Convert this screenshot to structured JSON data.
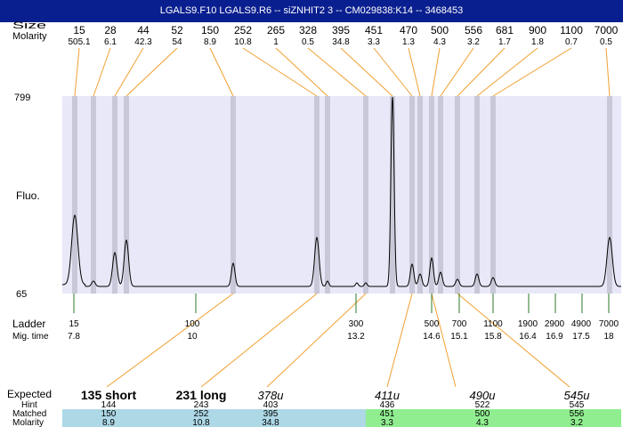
{
  "title": "LGALS9.F10  LGALS9.R6 -- siZNHIT2 3 -- CM029838:K14 -- 3468453",
  "colors": {
    "title_bg": "#0a1f8f",
    "plot_bg": "#e8e8f8",
    "peak_band": "#c8c8d8",
    "connector": "#f0a030",
    "ladder_tick": "#2a7a2a",
    "matched_blue": "#add8e6",
    "matched_green": "#90ee90"
  },
  "chart_data": {
    "type": "line",
    "row_labels": {
      "size": "Size",
      "molarity": "Molarity",
      "fluo": "Fluo.",
      "ladder": "Ladder",
      "mig_time": "Mig. time",
      "expected": "Expected",
      "hint": "Hint",
      "matched": "Matched",
      "matched_molarity": "Molarity"
    },
    "y_max": "799",
    "y_min": "65",
    "peaks": [
      {
        "size": "15",
        "molarity": "505.1"
      },
      {
        "size": "28",
        "molarity": "6.1"
      },
      {
        "size": "44",
        "molarity": "42.3"
      },
      {
        "size": "52",
        "molarity": "54"
      },
      {
        "size": "150",
        "molarity": "8.9"
      },
      {
        "size": "252",
        "molarity": "10.8"
      },
      {
        "size": "265",
        "molarity": "1"
      },
      {
        "size": "328",
        "molarity": "0.5"
      },
      {
        "size": "395",
        "molarity": "34.8"
      },
      {
        "size": "451",
        "molarity": "3.3"
      },
      {
        "size": "470",
        "molarity": "1.3"
      },
      {
        "size": "500",
        "molarity": "4.3"
      },
      {
        "size": "556",
        "molarity": "3.2"
      },
      {
        "size": "681",
        "molarity": "1.7"
      },
      {
        "size": "900",
        "molarity": "1.8"
      },
      {
        "size": "1100",
        "molarity": "0.7"
      },
      {
        "size": "7000",
        "molarity": "0.5"
      }
    ],
    "ladder": [
      {
        "size": "15",
        "time": "7.8"
      },
      {
        "size": "100",
        "time": "10"
      },
      {
        "size": "300",
        "time": "13.2"
      },
      {
        "size": "500",
        "time": "14.6"
      },
      {
        "size": "700",
        "time": "15.1"
      },
      {
        "size": "1100",
        "time": "15.8"
      },
      {
        "size": "1900",
        "time": "16.4"
      },
      {
        "size": "2900",
        "time": "16.9"
      },
      {
        "size": "4900",
        "time": "17.5"
      },
      {
        "size": "7000",
        "time": "18"
      }
    ],
    "expected": [
      {
        "label": "135 short",
        "hint": "144",
        "matched": "150",
        "molarity": "8.9",
        "style": "bold",
        "group": "blue"
      },
      {
        "label": "231 long",
        "hint": "243",
        "matched": "252",
        "molarity": "10.8",
        "style": "bold",
        "group": "blue"
      },
      {
        "label": "378u",
        "hint": "403",
        "matched": "395",
        "molarity": "34.8",
        "style": "italic",
        "group": "blue"
      },
      {
        "label": "411u",
        "hint": "436",
        "matched": "451",
        "molarity": "3.3",
        "style": "italic",
        "group": "green"
      },
      {
        "label": "490u",
        "hint": "522",
        "matched": "500",
        "molarity": "4.3",
        "style": "italic",
        "group": "green"
      },
      {
        "label": "545u",
        "hint": "545",
        "matched": "556",
        "molarity": "3.2",
        "style": "italic",
        "group": "green"
      }
    ]
  }
}
